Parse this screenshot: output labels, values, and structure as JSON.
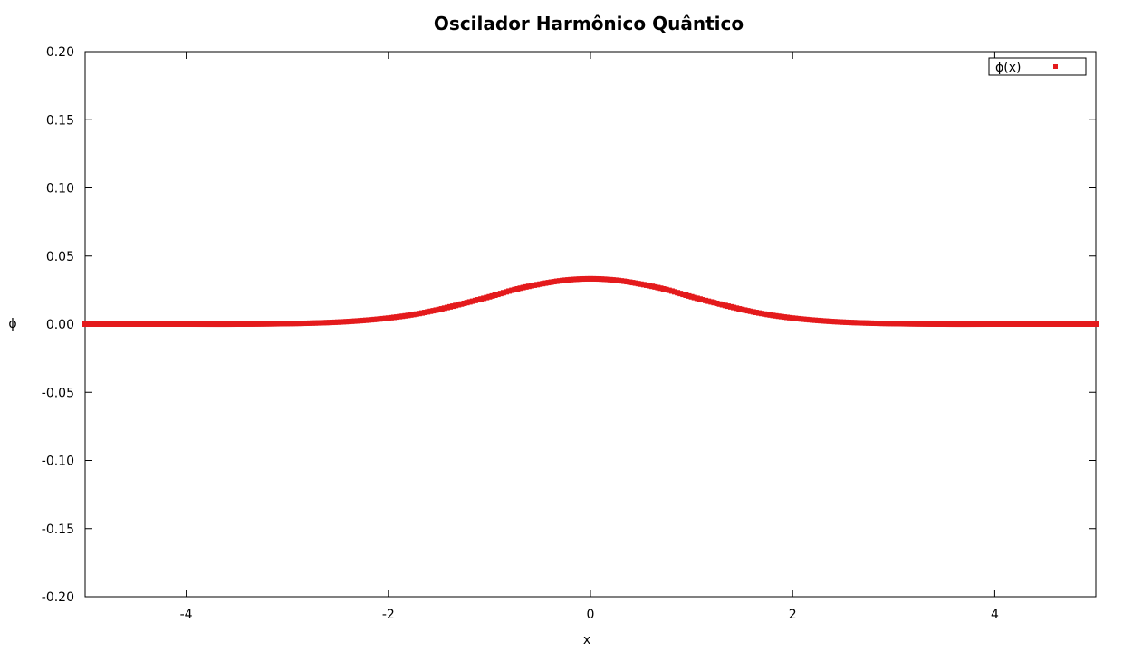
{
  "chart_data": {
    "type": "scatter",
    "title": "Oscilador Harmônico Quântico",
    "xlabel": "x",
    "ylabel": "ϕ",
    "xlim": [
      -5,
      5
    ],
    "ylim": [
      -0.2,
      0.2
    ],
    "x_ticks": [
      -4,
      -2,
      0,
      2,
      4
    ],
    "x_tick_labels": [
      "-4",
      "-2",
      "0",
      "2",
      "4"
    ],
    "y_ticks": [
      0.2,
      0.15,
      0.1,
      0.05,
      0.0,
      -0.05,
      -0.1,
      -0.15,
      -0.2
    ],
    "y_tick_labels": [
      "0.20",
      "0.15",
      "0.10",
      "0.05",
      "0.00",
      "-0.05",
      "-0.10",
      "-0.15",
      "-0.20"
    ],
    "grid": false,
    "legend_position": "top-right",
    "series": [
      {
        "name": "ϕ(x)",
        "color": "#e41a1c",
        "marker": "square-dot",
        "x": [
          -5.0,
          -4.5,
          -4.0,
          -3.5,
          -3.0,
          -2.75,
          -2.5,
          -2.25,
          -2.0,
          -1.75,
          -1.5,
          -1.25,
          -1.0,
          -0.75,
          -0.5,
          -0.25,
          0.0,
          0.25,
          0.5,
          0.75,
          1.0,
          1.25,
          1.5,
          1.75,
          2.0,
          2.25,
          2.5,
          2.75,
          3.0,
          3.5,
          4.0,
          4.5,
          5.0
        ],
        "y": [
          0.0,
          0.0,
          0.0,
          0.0,
          0.0004,
          0.0008,
          0.0015,
          0.0027,
          0.0045,
          0.0071,
          0.0108,
          0.0153,
          0.0201,
          0.0254,
          0.0294,
          0.0323,
          0.0333,
          0.0323,
          0.0294,
          0.0254,
          0.0201,
          0.0153,
          0.0108,
          0.0071,
          0.0045,
          0.0027,
          0.0015,
          0.0008,
          0.0004,
          0.0,
          0.0,
          0.0,
          0.0
        ]
      }
    ]
  }
}
